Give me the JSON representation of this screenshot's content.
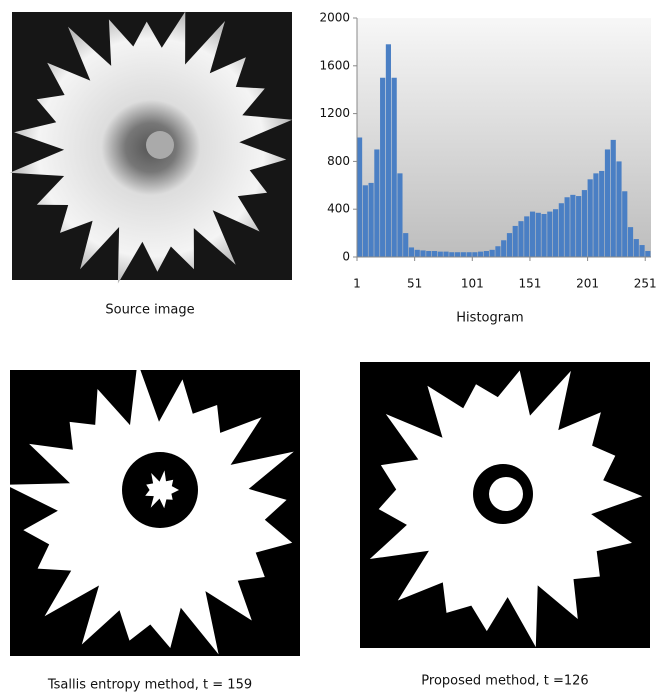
{
  "chart_data": {
    "type": "histogram",
    "xlabel": "Histogram",
    "bins": [
      1,
      6,
      11,
      16,
      21,
      26,
      31,
      36,
      41,
      46,
      51,
      56,
      61,
      66,
      71,
      76,
      81,
      86,
      91,
      96,
      101,
      106,
      111,
      116,
      121,
      126,
      131,
      136,
      141,
      146,
      151,
      156,
      161,
      166,
      171,
      176,
      181,
      186,
      191,
      196,
      201,
      206,
      211,
      216,
      221,
      226,
      231,
      236,
      241,
      246,
      251,
      256
    ],
    "values": [
      1000,
      600,
      620,
      900,
      1500,
      1780,
      1500,
      700,
      200,
      80,
      60,
      55,
      50,
      50,
      45,
      45,
      40,
      40,
      40,
      40,
      40,
      45,
      50,
      60,
      90,
      140,
      200,
      260,
      300,
      340,
      380,
      370,
      360,
      380,
      400,
      450,
      500,
      520,
      510,
      560,
      650,
      700,
      720,
      900,
      980,
      800,
      550,
      250,
      150,
      100,
      50
    ],
    "color": "#4a7fc4",
    "xlim": [
      1,
      256
    ],
    "xticks": [
      1,
      51,
      101,
      151,
      201,
      251
    ],
    "ylim": [
      0,
      2000
    ],
    "yticks": [
      0,
      400,
      800,
      1200,
      1600,
      2000
    ]
  },
  "captions": {
    "source": "Source image",
    "tsallis": "Tsallis entropy method, t = 159",
    "proposed": "Proposed method, t =126"
  }
}
